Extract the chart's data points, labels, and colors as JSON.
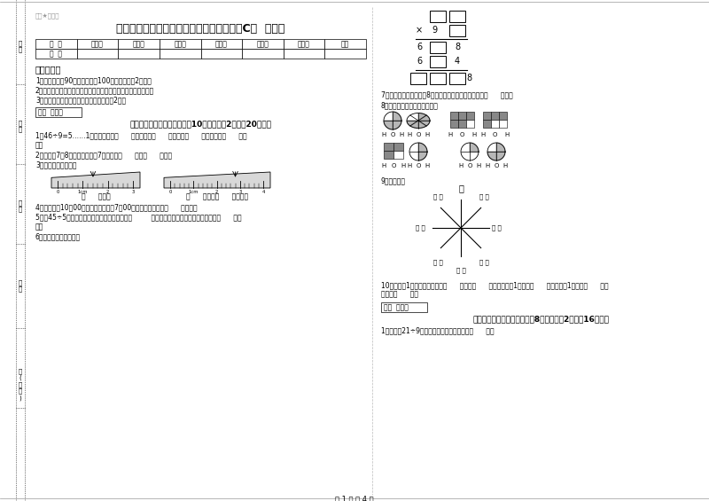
{
  "bg_color": "#ffffff",
  "title": "西南师大版三年级数学下学期期末考试试卷C卷  含答案",
  "watermark": "橙老★自用题",
  "score_table_headers": [
    "题  号",
    "填空题",
    "选择题",
    "判断题",
    "计算题",
    "综合题",
    "应用题",
    "总分"
  ],
  "score_table_row": [
    "得  分",
    "",
    "",
    "",
    "",
    "",
    "",
    ""
  ],
  "notice_title": "考试须知：",
  "notice_items": [
    "1、考试时间：90分钟，满分为100分（含卷面分2分）。",
    "2、请首先按要求在试卷的指定位置填写您的姓名、班级、学号。",
    "3、不要在试卷上乱写乱画，卷面不整洁扣2分。"
  ],
  "score_label": "得分  评卷人",
  "section1_title": "一、用心思考，正确填空（共10小题，每题2分，共20分）。",
  "q1": "1、46÷9=5……1中，被除数是（      ），除数是（      ），商是（      ），余数是（      ）。",
  "q2": "2、时针在7和8之间，分针指向7，这时是（      ）时（      ）分。",
  "q3": "3、量出钉子的长度。",
  "ruler1_label": "（      ）毫米",
  "ruler2_label": "（      ）厘米（      ）毫米。",
  "q4": "4、小林晚上10：00睡觉，第二天早上7：00起床，他一共睡了（      ）小时。",
  "q5": "5、口45÷5，要使商是两位数，口里最大可填（         ）；要使商是三位数，口里最小应填（      ）。",
  "q6": "6、在里填上适当的数。",
  "q7": "7、小明从一楼到三楼用8秒，照这样他从一楼到五楼用（      ）秒。",
  "q8": "8、看图写分数，并比较大小。",
  "q9": "9、填一填。",
  "q10": "10、分针走1小格，秒针正好走（      ），是（      ）秒，分针走1大格是（      ），时针走1大格是（      ）。",
  "q10b": "大格是（      ）。",
  "section2_title": "二、反复比较，慎重选择（共8小题，每题2分，共16分）。",
  "q2_1": "1、要使口21÷9的商是三位数，口里只能填（      ）。",
  "page_footer": "第 1 页 共 4 页",
  "compass_north": "北",
  "compass_label": "（ ）"
}
